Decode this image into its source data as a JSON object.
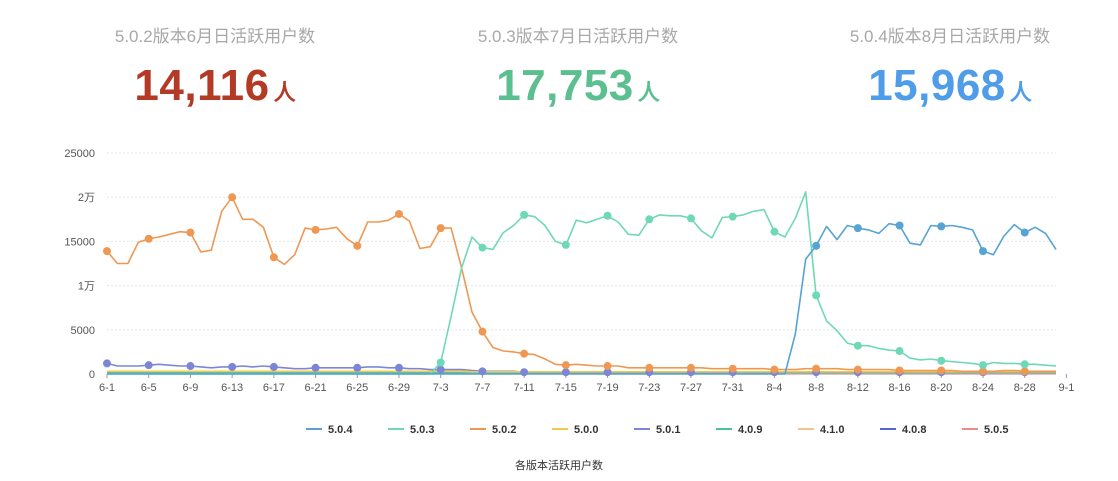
{
  "stats": [
    {
      "label": "5.0.2版本6月日活跃用户数",
      "value": "14,116",
      "unit": "人",
      "color": "#b33a24"
    },
    {
      "label": "5.0.3版本7月日活跃用户数",
      "value": "17,753",
      "unit": "人",
      "color": "#5cbf8f"
    },
    {
      "label": "5.0.4版本8月日活跃用户数",
      "value": "15,968",
      "unit": "人",
      "color": "#4f9de8"
    }
  ],
  "caption": "各版本活跃用户数",
  "chart_data": {
    "type": "line",
    "title": "各版本活跃用户数",
    "ylim": [
      0,
      25000
    ],
    "yticks": [
      0,
      5000,
      10000,
      15000,
      20000,
      25000
    ],
    "ytick_labels": [
      "0",
      "5000",
      "1万",
      "15000",
      "2万",
      "25000"
    ],
    "xtick_labels": [
      "6-1",
      "6-5",
      "6-9",
      "6-13",
      "6-17",
      "6-21",
      "6-25",
      "6-29",
      "7-3",
      "7-7",
      "7-11",
      "7-15",
      "7-19",
      "7-23",
      "7-27",
      "7-31",
      "8-4",
      "8-8",
      "8-12",
      "8-16",
      "8-20",
      "8-24",
      "8-28",
      "9-1"
    ],
    "grid": true,
    "legend_position": "bottom",
    "series": [
      {
        "name": "5.0.4",
        "color": "#56a3d4",
        "values": [
          0,
          0,
          0,
          0,
          0,
          0,
          0,
          0,
          0,
          0,
          0,
          0,
          0,
          0,
          0,
          0,
          0,
          0,
          0,
          0,
          0,
          0,
          0,
          0,
          0,
          0,
          0,
          0,
          0,
          0,
          0,
          0,
          0,
          0,
          0,
          0,
          0,
          0,
          0,
          0,
          0,
          0,
          0,
          0,
          0,
          0,
          0,
          0,
          0,
          0,
          0,
          0,
          0,
          0,
          0,
          0,
          0,
          0,
          0,
          0,
          0,
          0,
          0,
          0,
          0,
          0,
          4500,
          13000,
          14500,
          16700,
          15200,
          16800,
          16500,
          16300,
          15900,
          17000,
          16800,
          14800,
          14600,
          16800,
          16700,
          16800,
          16600,
          16300,
          13900,
          13500,
          15600,
          16900,
          16000,
          16600,
          15900,
          14100
        ],
        "markers": true
      },
      {
        "name": "5.0.3",
        "color": "#6fd8b7",
        "values": [
          0,
          0,
          0,
          0,
          0,
          0,
          0,
          0,
          0,
          0,
          0,
          0,
          0,
          0,
          0,
          0,
          0,
          0,
          0,
          0,
          0,
          0,
          0,
          0,
          0,
          0,
          0,
          0,
          0,
          0,
          0,
          0,
          1300,
          6500,
          12000,
          15500,
          14300,
          14100,
          16000,
          16800,
          18000,
          17800,
          16800,
          15000,
          14600,
          17400,
          17100,
          17500,
          17900,
          17200,
          15800,
          15700,
          17500,
          18000,
          17900,
          17900,
          17600,
          16200,
          15400,
          17700,
          17800,
          18000,
          18400,
          18600,
          16100,
          15500,
          17600,
          20600,
          8900,
          6000,
          4900,
          3500,
          3200,
          3200,
          2900,
          2700,
          2600,
          1800,
          1600,
          1700,
          1500,
          1400,
          1300,
          1200,
          1000,
          1300,
          1200,
          1200,
          1100,
          1100,
          1000,
          900
        ],
        "markers": true
      },
      {
        "name": "5.0.2",
        "color": "#ef9853",
        "values": [
          13900,
          12500,
          12500,
          14900,
          15300,
          15500,
          15800,
          16100,
          16000,
          13800,
          14000,
          18400,
          20000,
          17500,
          17500,
          16600,
          13200,
          12400,
          13500,
          16500,
          16300,
          16400,
          16600,
          15300,
          14500,
          17200,
          17200,
          17400,
          18100,
          17300,
          14200,
          14400,
          16500,
          16500,
          12000,
          7000,
          4800,
          3000,
          2600,
          2500,
          2300,
          2200,
          1700,
          1100,
          1000,
          1100,
          1000,
          900,
          900,
          900,
          700,
          700,
          700,
          700,
          700,
          700,
          700,
          700,
          600,
          600,
          600,
          600,
          600,
          600,
          500,
          500,
          500,
          600,
          600,
          600,
          600,
          500,
          500,
          500,
          500,
          500,
          400,
          400,
          400,
          400,
          400,
          400,
          300,
          300,
          300,
          300,
          400,
          400,
          300,
          300,
          300,
          300
        ],
        "markers": true
      },
      {
        "name": "5.0.0",
        "color": "#f2c94c",
        "values": [
          300,
          300,
          300,
          300,
          300,
          300,
          300,
          300,
          300,
          300,
          300,
          300,
          300,
          300,
          300,
          300,
          300,
          300,
          300,
          300,
          300,
          300,
          300,
          300,
          300,
          300,
          300,
          300,
          300,
          300,
          300,
          300,
          300,
          300,
          300,
          250,
          250,
          250,
          250,
          250,
          250,
          250,
          250,
          250,
          250,
          250,
          250,
          250,
          250,
          250,
          250,
          250,
          250,
          250,
          250,
          250,
          250,
          250,
          250,
          250,
          250,
          250,
          250,
          250,
          250,
          250,
          250,
          250,
          250,
          250,
          250,
          250,
          250,
          250,
          250,
          250,
          250,
          250,
          250,
          250,
          250,
          250,
          250,
          250,
          250,
          250,
          250,
          250,
          250,
          250,
          250,
          250
        ],
        "markers": false
      },
      {
        "name": "5.0.1",
        "color": "#7b87d6",
        "values": [
          1200,
          900,
          900,
          900,
          1000,
          1100,
          1000,
          900,
          900,
          800,
          700,
          800,
          800,
          900,
          800,
          900,
          800,
          700,
          600,
          600,
          700,
          700,
          700,
          700,
          700,
          800,
          800,
          700,
          700,
          600,
          600,
          500,
          500,
          500,
          500,
          400,
          300,
          300,
          300,
          300,
          200,
          200,
          200,
          200,
          200,
          200,
          200,
          200,
          200,
          200,
          200,
          200,
          200,
          200,
          200,
          200,
          200,
          200,
          200,
          200,
          200,
          200,
          200,
          200,
          200,
          200,
          200,
          200,
          200,
          200,
          200,
          200,
          200,
          200,
          200,
          200,
          200,
          200,
          200,
          200,
          200,
          200,
          200,
          200,
          200,
          200,
          200,
          200,
          200,
          200,
          200,
          200
        ],
        "markers": true
      },
      {
        "name": "4.0.9",
        "color": "#4fbf9e",
        "values": [
          150,
          150,
          150,
          150,
          150,
          150,
          150,
          150,
          150,
          150,
          150,
          150,
          150,
          150,
          150,
          150,
          150,
          150,
          150,
          150,
          150,
          150,
          150,
          150,
          150,
          150,
          150,
          150,
          150,
          150,
          150,
          150,
          150,
          150,
          150,
          150,
          150,
          150,
          150,
          150,
          150,
          150,
          150,
          150,
          150,
          150,
          150,
          150,
          150,
          150,
          150,
          150,
          150,
          150,
          150,
          150,
          150,
          150,
          150,
          150,
          150,
          150,
          150,
          150,
          150,
          150,
          150,
          150,
          150,
          150,
          150,
          150,
          150,
          150,
          150,
          150,
          150,
          150,
          150,
          150,
          150,
          150,
          150,
          150,
          150,
          150,
          150,
          150,
          150,
          150,
          150,
          150
        ],
        "markers": false
      },
      {
        "name": "4.1.0",
        "color": "#f4c58a",
        "values": [
          100,
          100,
          100,
          100,
          100,
          100,
          100,
          100,
          100,
          100,
          100,
          100,
          100,
          100,
          100,
          100,
          100,
          100,
          100,
          100,
          100,
          100,
          100,
          100,
          100,
          100,
          100,
          100,
          100,
          100,
          100,
          100,
          100,
          100,
          100,
          100,
          100,
          100,
          100,
          100,
          100,
          100,
          100,
          100,
          100,
          100,
          100,
          100,
          100,
          100,
          100,
          100,
          100,
          100,
          100,
          100,
          100,
          100,
          100,
          100,
          100,
          100,
          100,
          100,
          100,
          100,
          100,
          100,
          100,
          100,
          100,
          100,
          100,
          100,
          100,
          100,
          100,
          100,
          100,
          100,
          100,
          100,
          100,
          100,
          100,
          100,
          100,
          100,
          100,
          100,
          100,
          100
        ],
        "markers": false
      },
      {
        "name": "4.0.8",
        "color": "#5566cc",
        "values": [
          80,
          80,
          80,
          80,
          80,
          80,
          80,
          80,
          80,
          80,
          80,
          80,
          80,
          80,
          80,
          80,
          80,
          80,
          80,
          80,
          80,
          80,
          80,
          80,
          80,
          80,
          80,
          80,
          80,
          80,
          80,
          80,
          80,
          80,
          80,
          80,
          80,
          80,
          80,
          80,
          80,
          80,
          80,
          80,
          80,
          80,
          80,
          80,
          80,
          80,
          80,
          80,
          80,
          80,
          80,
          80,
          80,
          80,
          80,
          80,
          80,
          80,
          80,
          80,
          80,
          80,
          80,
          80,
          80,
          80,
          80,
          80,
          80,
          80,
          80,
          80,
          80,
          80,
          80,
          80,
          80,
          80,
          80,
          80,
          80,
          80,
          80,
          80,
          80,
          80,
          80,
          80
        ],
        "markers": false
      },
      {
        "name": "5.0.5",
        "color": "#ee8b86",
        "values": [
          50,
          50,
          50,
          50,
          50,
          50,
          50,
          50,
          50,
          50,
          50,
          50,
          50,
          50,
          50,
          50,
          50,
          50,
          50,
          50,
          50,
          50,
          50,
          50,
          50,
          50,
          50,
          50,
          50,
          50,
          50,
          50,
          50,
          50,
          50,
          50,
          50,
          50,
          50,
          50,
          50,
          50,
          50,
          50,
          50,
          50,
          50,
          50,
          50,
          50,
          50,
          50,
          50,
          50,
          50,
          50,
          50,
          50,
          50,
          50,
          50,
          50,
          50,
          50,
          50,
          50,
          50,
          50,
          50,
          50,
          50,
          50,
          50,
          50,
          50,
          50,
          50,
          50,
          50,
          50,
          50,
          50,
          50,
          50,
          50,
          50,
          50,
          50,
          50,
          50,
          50,
          50
        ],
        "markers": false
      }
    ]
  }
}
